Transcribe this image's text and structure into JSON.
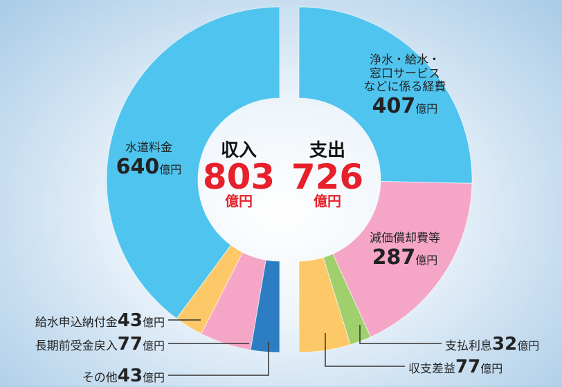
{
  "chart_data": [
    {
      "type": "half-donut",
      "side": "left",
      "title": "収入",
      "total": 803,
      "unit": "億円",
      "categories": [
        "水道料金",
        "給水申込納付金",
        "長期前受金戻入",
        "その他"
      ],
      "values": [
        640,
        43,
        77,
        43
      ],
      "colors": [
        "#4fc4ee",
        "#fdc867",
        "#f5a6c6",
        "#2c7dc2"
      ]
    },
    {
      "type": "half-donut",
      "side": "right",
      "title": "支出",
      "total": 726,
      "unit": "億円",
      "categories": [
        "浄水・給水・\n窓口サービス\nなどに係る経費",
        "減価償却費等",
        "支払利息",
        "収支差益"
      ],
      "values": [
        407,
        287,
        32,
        77
      ],
      "colors": [
        "#4fc4ee",
        "#f5a6c6",
        "#9fd06c",
        "#fdc867"
      ]
    }
  ]
}
